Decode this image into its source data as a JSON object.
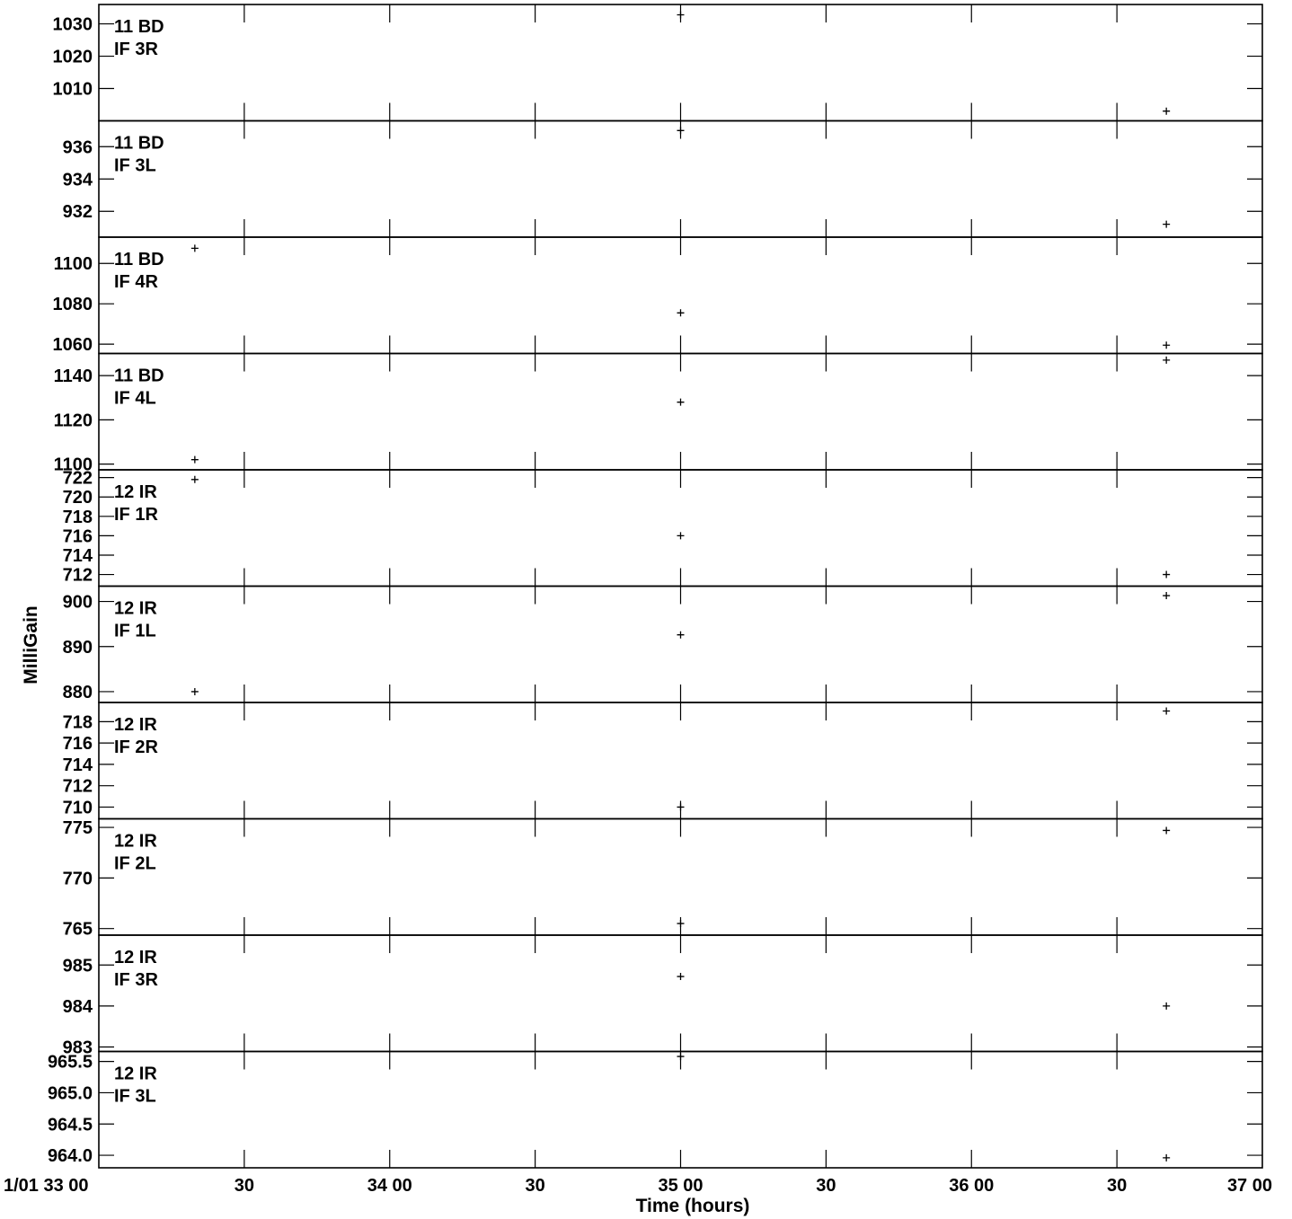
{
  "chart_data": {
    "type": "scatter",
    "ylabel": "MilliGain",
    "xlabel": "Time (hours)",
    "x_range": [
      33.0,
      37.0
    ],
    "x_ticks": [
      {
        "x": 33.0,
        "label": "1/01 33 00"
      },
      {
        "x": 33.5,
        "label": "30"
      },
      {
        "x": 34.0,
        "label": "34 00"
      },
      {
        "x": 34.5,
        "label": "30"
      },
      {
        "x": 35.0,
        "label": "35 00"
      },
      {
        "x": 35.5,
        "label": "30"
      },
      {
        "x": 36.0,
        "label": "36 00"
      },
      {
        "x": 36.5,
        "label": "30"
      },
      {
        "x": 37.0,
        "label": "37 00"
      }
    ],
    "panels": [
      {
        "label1": "11 BD",
        "label2": "IF 3R",
        "ylim": [
          1000.0,
          1036.0
        ],
        "yticks": [
          {
            "v": 1010,
            "label": "1010"
          },
          {
            "v": 1020,
            "label": "1020"
          },
          {
            "v": 1030,
            "label": "1030"
          }
        ],
        "points": [
          {
            "x": 35.0,
            "y": 1032.8
          },
          {
            "x": 36.67,
            "y": 1003.0
          }
        ]
      },
      {
        "label1": "11 BD",
        "label2": "IF 3L",
        "ylim": [
          930.4,
          937.6
        ],
        "yticks": [
          {
            "v": 932,
            "label": "932"
          },
          {
            "v": 934,
            "label": "934"
          },
          {
            "v": 936,
            "label": "936"
          }
        ],
        "points": [
          {
            "x": 35.0,
            "y": 937.0
          },
          {
            "x": 36.67,
            "y": 931.2
          }
        ]
      },
      {
        "label1": "11 BD",
        "label2": "IF 4R",
        "ylim": [
          1055.4,
          1113.0
        ],
        "yticks": [
          {
            "v": 1060,
            "label": "1060"
          },
          {
            "v": 1080,
            "label": "1080"
          },
          {
            "v": 1100,
            "label": "1100"
          }
        ],
        "points": [
          {
            "x": 33.33,
            "y": 1107.5
          },
          {
            "x": 35.0,
            "y": 1075.5
          },
          {
            "x": 36.67,
            "y": 1059.5
          }
        ]
      },
      {
        "label1": "11 BD",
        "label2": "IF 4L",
        "ylim": [
          1097.4,
          1150.0
        ],
        "yticks": [
          {
            "v": 1100,
            "label": "1100"
          },
          {
            "v": 1120,
            "label": "1120"
          },
          {
            "v": 1140,
            "label": "1140"
          }
        ],
        "points": [
          {
            "x": 33.33,
            "y": 1102.0
          },
          {
            "x": 35.0,
            "y": 1128.0
          },
          {
            "x": 36.67,
            "y": 1147.0
          }
        ]
      },
      {
        "label1": "12 IR",
        "label2": "IF 1R",
        "ylim": [
          710.8,
          722.8
        ],
        "yticks": [
          {
            "v": 712,
            "label": "712"
          },
          {
            "v": 714,
            "label": "714"
          },
          {
            "v": 716,
            "label": "716"
          },
          {
            "v": 718,
            "label": "718"
          },
          {
            "v": 720,
            "label": "720"
          },
          {
            "v": 722,
            "label": "722"
          }
        ],
        "points": [
          {
            "x": 33.33,
            "y": 721.8
          },
          {
            "x": 35.0,
            "y": 716.0
          },
          {
            "x": 36.67,
            "y": 712.0
          }
        ]
      },
      {
        "label1": "12 IR",
        "label2": "IF 1L",
        "ylim": [
          877.6,
          903.4
        ],
        "yticks": [
          {
            "v": 880,
            "label": "880"
          },
          {
            "v": 890,
            "label": "890"
          },
          {
            "v": 900,
            "label": "900"
          }
        ],
        "points": [
          {
            "x": 33.33,
            "y": 880.0
          },
          {
            "x": 35.0,
            "y": 892.6
          },
          {
            "x": 36.67,
            "y": 901.3
          }
        ]
      },
      {
        "label1": "12 IR",
        "label2": "IF 2R",
        "ylim": [
          708.9,
          719.8
        ],
        "yticks": [
          {
            "v": 710,
            "label": "710"
          },
          {
            "v": 712,
            "label": "712"
          },
          {
            "v": 714,
            "label": "714"
          },
          {
            "v": 716,
            "label": "716"
          },
          {
            "v": 718,
            "label": "718"
          }
        ],
        "points": [
          {
            "x": 35.0,
            "y": 710.0
          },
          {
            "x": 36.67,
            "y": 719.0
          }
        ]
      },
      {
        "label1": "12 IR",
        "label2": "IF 2L",
        "ylim": [
          764.35,
          775.85
        ],
        "yticks": [
          {
            "v": 765,
            "label": "765"
          },
          {
            "v": 770,
            "label": "770"
          },
          {
            "v": 775,
            "label": "775"
          }
        ],
        "points": [
          {
            "x": 35.0,
            "y": 765.5
          },
          {
            "x": 36.67,
            "y": 774.7
          }
        ]
      },
      {
        "label1": "12 IR",
        "label2": "IF 3R",
        "ylim": [
          982.89,
          985.73
        ],
        "yticks": [
          {
            "v": 983,
            "label": "983"
          },
          {
            "v": 984,
            "label": "984"
          },
          {
            "v": 985,
            "label": "985"
          }
        ],
        "points": [
          {
            "x": 35.0,
            "y": 984.72
          },
          {
            "x": 36.67,
            "y": 984.0
          }
        ]
      },
      {
        "label1": "12 IR",
        "label2": "IF 3L",
        "ylim": [
          963.8,
          965.66
        ],
        "yticks": [
          {
            "v": 964.0,
            "label": "964.0"
          },
          {
            "v": 964.5,
            "label": "964.5"
          },
          {
            "v": 965.0,
            "label": "965.0"
          },
          {
            "v": 965.5,
            "label": "965.5"
          }
        ],
        "points": [
          {
            "x": 35.0,
            "y": 965.58
          },
          {
            "x": 36.67,
            "y": 963.96
          }
        ]
      }
    ]
  }
}
